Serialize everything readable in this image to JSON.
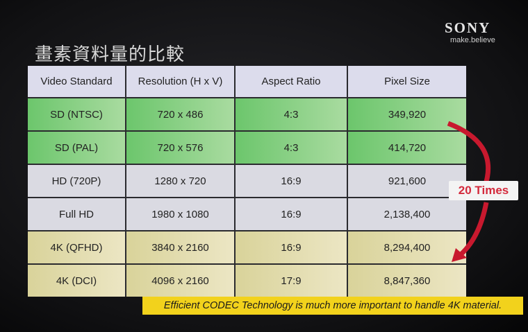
{
  "header": {
    "title": "畫素資料量的比較",
    "brand": "SONY",
    "tagline": "make.believe"
  },
  "table": {
    "columns": [
      "Video Standard",
      "Resolution (H x V)",
      "Aspect Ratio",
      "Pixel Size"
    ],
    "rows": [
      [
        "SD (NTSC)",
        "720 x 486",
        "4:3",
        "349,920"
      ],
      [
        "SD (PAL)",
        "720 x 576",
        "4:3",
        "414,720"
      ],
      [
        "HD (720P)",
        "1280 x 720",
        "16:9",
        "921,600"
      ],
      [
        "Full HD",
        "1980 x 1080",
        "16:9",
        "2,138,400"
      ],
      [
        "4K (QFHD)",
        "3840 x 2160",
        "16:9",
        "8,294,400"
      ],
      [
        "4K (DCI)",
        "4096 x 2160",
        "17:9",
        "8,847,360"
      ]
    ]
  },
  "annotation": "20 Times",
  "footer": "Efficient CODEC Technology is much more important to handle 4K material."
}
